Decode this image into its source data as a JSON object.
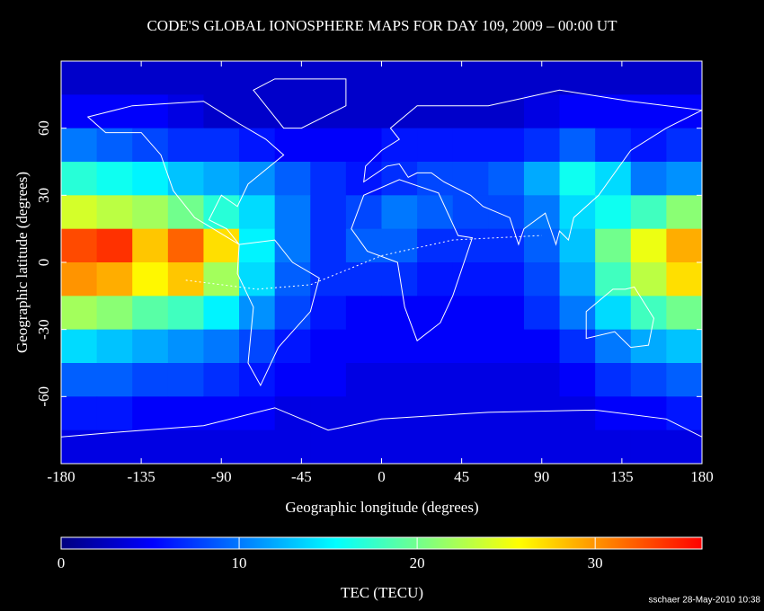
{
  "chart_data": {
    "type": "heatmap",
    "title": "CODE'S GLOBAL IONOSPHERE MAPS FOR DAY 109, 2009 – 00:00 UT",
    "x_label": "Geographic longitude (degrees)",
    "y_label": "Geographic latitude (degrees)",
    "colorbar_label": "TEC (TECU)",
    "credit": "sschaer 28-May-2010 10:38",
    "xlim": [
      -180,
      180
    ],
    "xticks": [
      -180,
      -135,
      -90,
      -45,
      0,
      45,
      90,
      135,
      180
    ],
    "ylim": [
      -90,
      90
    ],
    "yticks": [
      -60,
      -30,
      0,
      30,
      60
    ],
    "zlim": [
      0,
      36
    ],
    "zticks": [
      0,
      10,
      20,
      30
    ],
    "colormap": [
      "#00007f",
      "#0000ff",
      "#007fff",
      "#00ffff",
      "#7fff7f",
      "#ffff00",
      "#ff7f00",
      "#ff0000"
    ],
    "x": [
      -170,
      -150,
      -130,
      -110,
      -90,
      -70,
      -50,
      -30,
      -10,
      10,
      30,
      50,
      70,
      90,
      110,
      130,
      150,
      170
    ],
    "y": [
      82.5,
      67.5,
      52.5,
      37.5,
      22.5,
      7.5,
      -7.5,
      -22.5,
      -37.5,
      -52.5,
      -67.5,
      -82.5
    ],
    "values": [
      [
        3,
        3,
        3,
        3,
        3,
        3,
        3,
        3,
        3,
        3,
        3,
        3,
        3,
        3,
        3,
        3,
        3,
        3
      ],
      [
        5,
        5,
        5,
        4,
        3,
        3,
        3,
        3,
        3,
        3,
        3,
        3,
        3,
        4,
        5,
        5,
        5,
        5
      ],
      [
        10,
        9,
        8,
        7,
        7,
        6,
        5,
        5,
        5,
        6,
        6,
        6,
        6,
        7,
        9,
        7,
        6,
        7
      ],
      [
        17,
        16,
        15,
        13,
        12,
        11,
        9,
        7,
        6,
        7,
        8,
        8,
        9,
        12,
        16,
        14,
        10,
        11
      ],
      [
        24,
        23,
        22,
        20,
        17,
        14,
        10,
        7,
        8,
        10,
        9,
        8,
        8,
        10,
        14,
        16,
        18,
        21
      ],
      [
        33,
        34,
        28,
        32,
        27,
        15,
        10,
        7,
        9,
        9,
        7,
        7,
        7,
        9,
        13,
        20,
        25,
        29
      ],
      [
        30,
        29,
        26,
        28,
        22,
        14,
        9,
        7,
        7,
        7,
        6,
        6,
        6,
        8,
        12,
        18,
        23,
        27
      ],
      [
        22,
        21,
        19,
        18,
        15,
        11,
        8,
        6,
        5,
        5,
        5,
        5,
        5,
        7,
        10,
        14,
        18,
        20
      ],
      [
        14,
        13,
        12,
        11,
        10,
        8,
        6,
        5,
        5,
        5,
        5,
        5,
        5,
        5,
        7,
        10,
        12,
        13
      ],
      [
        9,
        9,
        8,
        8,
        7,
        6,
        5,
        5,
        4,
        4,
        4,
        4,
        4,
        4,
        5,
        7,
        8,
        9
      ],
      [
        6,
        6,
        5,
        5,
        5,
        5,
        4,
        4,
        4,
        4,
        4,
        4,
        4,
        4,
        4,
        5,
        5,
        6
      ],
      [
        4,
        4,
        4,
        4,
        4,
        4,
        4,
        4,
        4,
        4,
        4,
        4,
        4,
        4,
        4,
        4,
        4,
        4
      ]
    ]
  }
}
